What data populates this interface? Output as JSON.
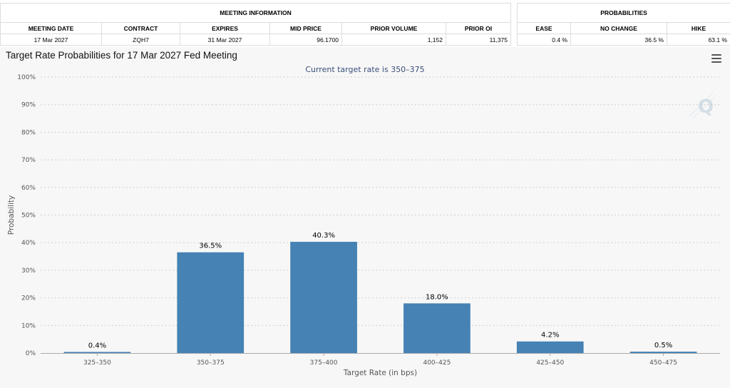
{
  "meeting_info": {
    "group_title": "MEETING INFORMATION",
    "headers": [
      "MEETING DATE",
      "CONTRACT",
      "EXPIRES",
      "MID PRICE",
      "PRIOR VOLUME",
      "PRIOR OI"
    ],
    "values": [
      "17 Mar 2027",
      "ZQH7",
      "31 Mar 2027",
      "96.1700",
      "1,152",
      "11,375"
    ]
  },
  "probabilities": {
    "group_title": "PROBABILITIES",
    "headers": [
      "EASE",
      "NO CHANGE",
      "HIKE"
    ],
    "values": [
      "0.4 %",
      "36.5 %",
      "63.1 %"
    ]
  },
  "chart": {
    "menu_icon": "hamburger-menu-icon",
    "watermark_icon": "q-logo-icon",
    "bar_color": "#4682b4"
  },
  "chart_data": {
    "type": "bar",
    "title": "Target Rate Probabilities for 17 Mar 2027 Fed Meeting",
    "subtitle": "Current target rate is 350–375",
    "xlabel": "Target Rate (in bps)",
    "ylabel": "Probability",
    "categories": [
      "325–350",
      "350–375",
      "375–400",
      "400–425",
      "425–450",
      "450–475"
    ],
    "values": [
      0.4,
      36.5,
      40.3,
      18.0,
      4.2,
      0.5
    ],
    "data_labels": [
      "0.4%",
      "36.5%",
      "40.3%",
      "18.0%",
      "4.2%",
      "0.5%"
    ],
    "ylim": [
      0,
      100
    ],
    "yticks": [
      "0%",
      "10%",
      "20%",
      "30%",
      "40%",
      "50%",
      "60%",
      "70%",
      "80%",
      "90%",
      "100%"
    ],
    "grid": true,
    "legend": "none"
  }
}
